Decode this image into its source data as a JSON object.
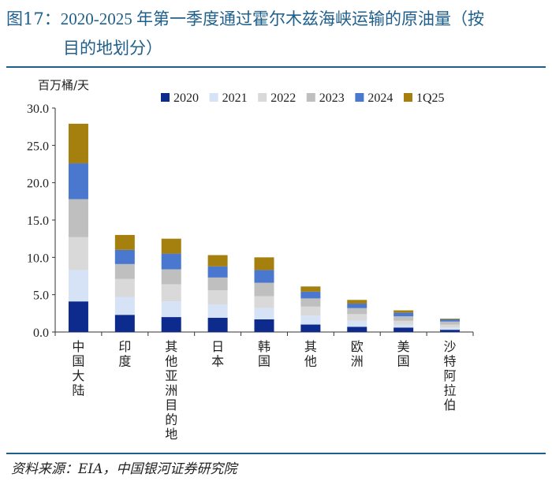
{
  "title": {
    "fig_label": "图17：",
    "line1": "2020-2025 年第一季度通过霍尔木兹海峡运输的原油量（按",
    "line2": "目的地划分）"
  },
  "source": "资料来源：EIA，中国银河证券研究院",
  "colors": {
    "title": "#1f5f8b",
    "series": [
      "#0d2b8c",
      "#d6e2f5",
      "#d9d9d9",
      "#bfbfbf",
      "#4a78cf",
      "#a5800f"
    ]
  },
  "chart_data": {
    "type": "bar",
    "stacked": true,
    "ylabel": "百万桶/天",
    "ylim": [
      0,
      30
    ],
    "yticks": [
      "0.0",
      "5.0",
      "10.0",
      "15.0",
      "20.0",
      "25.0",
      "30.0"
    ],
    "legend_position": "top",
    "categories": [
      "中国大陆",
      "印度",
      "其他亚洲目的地",
      "日本",
      "韩国",
      "其他",
      "欧洲",
      "美国",
      "沙特阿拉伯"
    ],
    "series": [
      {
        "name": "2020",
        "values": [
          4.1,
          2.3,
          2.0,
          1.9,
          1.7,
          1.0,
          0.7,
          0.6,
          0.3
        ]
      },
      {
        "name": "2021",
        "values": [
          4.2,
          2.4,
          2.1,
          1.8,
          1.5,
          1.2,
          0.8,
          0.4,
          0.3
        ]
      },
      {
        "name": "2022",
        "values": [
          4.4,
          2.4,
          2.3,
          1.9,
          1.6,
          1.2,
          0.9,
          0.5,
          0.4
        ]
      },
      {
        "name": "2023",
        "values": [
          5.1,
          2.0,
          2.0,
          1.7,
          1.8,
          1.1,
          0.8,
          0.6,
          0.4
        ]
      },
      {
        "name": "2024",
        "values": [
          4.8,
          1.9,
          2.1,
          1.5,
          1.7,
          0.9,
          0.6,
          0.5,
          0.3
        ]
      },
      {
        "name": "1Q25",
        "values": [
          5.3,
          2.0,
          2.0,
          1.5,
          1.7,
          0.7,
          0.5,
          0.3,
          0.1
        ]
      }
    ]
  }
}
